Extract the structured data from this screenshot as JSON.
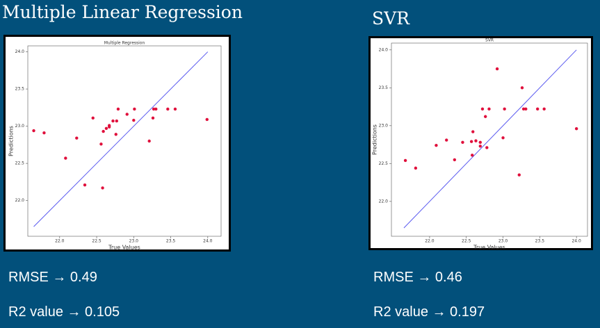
{
  "slide": {
    "headings": [
      "Multiple Linear Regression",
      "SVR"
    ],
    "metrics": [
      [
        "RMSE → 0.49",
        "R2 value → 0.105"
      ],
      [
        "RMSE → 0.46",
        "R2 value → 0.197"
      ]
    ]
  },
  "chart_data": [
    {
      "type": "scatter",
      "title": "Multiple Regression",
      "x_label": "True Values",
      "y_label": "Predictions",
      "color": "#e0103c",
      "x": [
        21.65,
        21.79,
        22.08,
        22.23,
        22.34,
        22.45,
        22.56,
        22.58,
        22.59,
        22.63,
        22.67,
        22.67,
        22.72,
        22.76,
        22.77,
        22.79,
        22.91,
        23.0,
        23.01,
        23.21,
        23.26,
        23.27,
        23.3,
        23.46,
        23.56,
        23.99
      ],
      "values": [
        22.94,
        22.91,
        22.57,
        22.84,
        22.21,
        23.11,
        22.76,
        22.17,
        22.93,
        22.97,
        22.99,
        23.01,
        23.07,
        22.89,
        23.07,
        23.23,
        23.16,
        23.08,
        23.23,
        22.8,
        23.11,
        23.23,
        23.23,
        23.23,
        23.23,
        23.09
      ],
      "line": {
        "x": [
          21.65,
          24.0
        ],
        "values": [
          21.65,
          24.0
        ],
        "color": "#5b5bf0"
      },
      "xlim": [
        21.57,
        24.18
      ],
      "ylim": [
        21.52,
        24.08
      ],
      "xticks": [
        {
          "value": 22,
          "label": "22.0"
        },
        {
          "value": 22.5,
          "label": "22.5"
        },
        {
          "value": 23,
          "label": "23.0"
        },
        {
          "value": 23.5,
          "label": "23.5"
        },
        {
          "value": 24,
          "label": "24.0"
        }
      ],
      "yticks": [
        {
          "value": 22,
          "label": "22.0"
        },
        {
          "value": 22.5,
          "label": "22.5"
        },
        {
          "value": 23,
          "label": "23.0"
        },
        {
          "value": 23.5,
          "label": "23.5"
        },
        {
          "value": 24,
          "label": "24.0"
        }
      ]
    },
    {
      "type": "scatter",
      "title": "SVR",
      "x_label": "True Values",
      "y_label": "Predictions",
      "color": "#e0103c",
      "x": [
        21.67,
        21.81,
        22.09,
        22.23,
        22.34,
        22.45,
        22.58,
        22.59,
        22.57,
        22.63,
        22.69,
        22.69,
        22.72,
        22.76,
        22.78,
        22.81,
        22.92,
        23.0,
        23.02,
        23.22,
        23.26,
        23.28,
        23.31,
        23.47,
        23.56,
        24.0
      ],
      "values": [
        22.54,
        22.44,
        22.74,
        22.81,
        22.55,
        22.78,
        22.61,
        22.92,
        22.79,
        22.8,
        22.73,
        22.78,
        23.22,
        23.12,
        22.71,
        23.22,
        23.75,
        22.84,
        23.22,
        22.35,
        23.5,
        23.22,
        23.22,
        23.22,
        23.22,
        22.96
      ],
      "line": {
        "x": [
          21.65,
          24.0
        ],
        "values": [
          21.65,
          24.0
        ],
        "color": "#5b5bf0"
      },
      "xlim": [
        21.48,
        24.15
      ],
      "ylim": [
        21.54,
        24.09
      ],
      "xticks": [
        {
          "value": 22,
          "label": "22.0"
        },
        {
          "value": 22.5,
          "label": "22.5"
        },
        {
          "value": 23,
          "label": "23.0"
        },
        {
          "value": 23.5,
          "label": "23.5"
        },
        {
          "value": 24,
          "label": "24.0"
        }
      ],
      "yticks": [
        {
          "value": 22,
          "label": "22.0"
        },
        {
          "value": 22.5,
          "label": "22.5"
        },
        {
          "value": 23,
          "label": "23.0"
        },
        {
          "value": 23.5,
          "label": "23.5"
        },
        {
          "value": 24,
          "label": "24.0"
        }
      ]
    }
  ]
}
